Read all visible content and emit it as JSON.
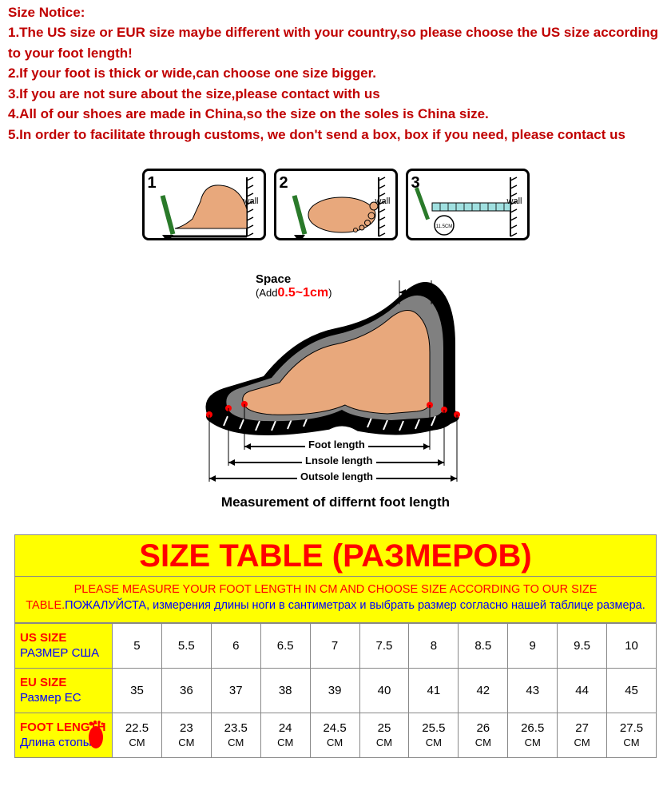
{
  "notice": {
    "title": "Size Notice:",
    "items": [
      "1.The US size or EUR size maybe different with your country,so please choose the US size according to your foot length!",
      "2.If your foot is thick or wide,can choose one size bigger.",
      "3.If you are not sure about the size,please contact with us",
      "4.All of our shoes are made in China,so the size on the soles is China size.",
      "5.In order to facilitate through customs, we don't send a box, box if you need, please contact us"
    ]
  },
  "diagram": {
    "steps": [
      {
        "num": "1",
        "wall": "wall"
      },
      {
        "num": "2",
        "wall": "wall"
      },
      {
        "num": "3",
        "wall": "wall",
        "measure": "11.5CM"
      }
    ],
    "space_label": "Space",
    "space_add": "(Add",
    "space_range": "0.5~1cm",
    "space_close": ")",
    "foot_length": "Foot length",
    "insole_length": "Lnsole length",
    "outsole_length": "Outsole length",
    "caption": "Measurement of differnt foot length",
    "colors": {
      "foot_fill": "#e8a87c",
      "shoe_outer": "#000000",
      "shoe_inner": "#808080",
      "space_text": "#ff0000",
      "dot": "#ff0000",
      "pencil": "#2a7a2a"
    }
  },
  "sizeTable": {
    "title": "SIZE TABLE (РАЗМЕРОВ)",
    "instruction_en": "PLEASE MEASURE YOUR FOOT LENGTH IN CM AND CHOOSE SIZE ACCORDING TO OUR SIZE TABLE.",
    "instruction_ru": "ПОЖАЛУЙСТА, измерения длины ноги в сантиметрах и выбрать размер согласно нашей таблице размера.",
    "rows": [
      {
        "label_en": "US SIZE",
        "label_ru": "РАЗМЕР США",
        "cells": [
          "5",
          "5.5",
          "6",
          "6.5",
          "7",
          "7.5",
          "8",
          "8.5",
          "9",
          "9.5",
          "10"
        ]
      },
      {
        "label_en": "EU SIZE",
        "label_ru": "Размер ЕС",
        "cells": [
          "35",
          "36",
          "37",
          "38",
          "39",
          "40",
          "41",
          "42",
          "43",
          "44",
          "45"
        ]
      },
      {
        "label_en": "FOOT LENGTH",
        "label_ru": "Длина стопы",
        "has_icon": true,
        "cells": [
          "22.5",
          "23",
          "23.5",
          "24",
          "24.5",
          "25",
          "25.5",
          "26",
          "26.5",
          "27",
          "27.5"
        ],
        "sub": "CM"
      }
    ],
    "colors": {
      "header_bg": "#ffff00",
      "title_color": "#ff0000",
      "en_color": "#ff0000",
      "ru_color": "#0000ff",
      "border": "#888888",
      "cell_bg": "#ffffff"
    }
  }
}
